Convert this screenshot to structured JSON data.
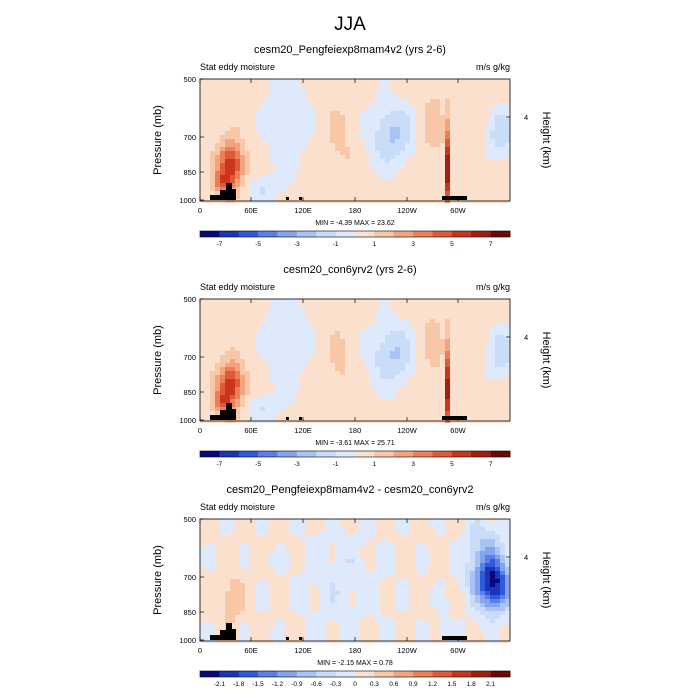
{
  "figure": {
    "title": "JJA",
    "colors": {
      "neg": [
        "#08087a",
        "#1c35b8",
        "#2f59dc",
        "#5a7fe6",
        "#86a4ee",
        "#a9c3f4",
        "#c9dcf8",
        "#deeafb"
      ],
      "pos": [
        "#fbe1cd",
        "#f8c7a8",
        "#f3a47e",
        "#ec7f58",
        "#e05a38",
        "#c83620",
        "#a51c10",
        "#6e0a06"
      ],
      "land": "#000000"
    }
  },
  "chart_data": [
    {
      "type": "heatmap",
      "title": "cesm20_Pengfeiexp8mam4v2 (yrs 2-6)",
      "left_label": "Stat eddy moisture",
      "right_label": "m/s g/kg",
      "ylabel": "Pressure (mb)",
      "right_axis_label": "Height (km)",
      "right_ticks": [
        "4"
      ],
      "y_ticks": [
        "500",
        "700",
        "850",
        "1000"
      ],
      "x_ticks": [
        "0",
        "60E",
        "120E",
        "180",
        "120W",
        "60W"
      ],
      "minmax_text": "MIN = -4.39   MAX = 23.62",
      "min": -4.39,
      "max": 23.62,
      "colorbar_labels": [
        "-7",
        "-5",
        "-3",
        "-1",
        "1",
        "3",
        "5",
        "7"
      ],
      "levels": [
        -8,
        -7,
        -6,
        -5,
        -4,
        -3,
        -2,
        -1,
        0,
        1,
        2,
        3,
        4,
        5,
        6,
        7,
        8
      ]
    },
    {
      "type": "heatmap",
      "title": "cesm20_con6yrv2 (yrs 2-6)",
      "left_label": "Stat eddy moisture",
      "right_label": "m/s g/kg",
      "ylabel": "Pressure (mb)",
      "right_axis_label": "Height (km)",
      "right_ticks": [
        "4"
      ],
      "y_ticks": [
        "500",
        "700",
        "850",
        "1000"
      ],
      "x_ticks": [
        "0",
        "60E",
        "120E",
        "180",
        "120W",
        "60W"
      ],
      "minmax_text": "MIN = -3.61   MAX = 25.71",
      "min": -3.61,
      "max": 25.71,
      "colorbar_labels": [
        "-7",
        "-5",
        "-3",
        "-1",
        "1",
        "3",
        "5",
        "7"
      ],
      "levels": [
        -8,
        -7,
        -6,
        -5,
        -4,
        -3,
        -2,
        -1,
        0,
        1,
        2,
        3,
        4,
        5,
        6,
        7,
        8
      ]
    },
    {
      "type": "heatmap",
      "title": "cesm20_Pengfeiexp8mam4v2 - cesm20_con6yrv2",
      "left_label": "Stat eddy moisture",
      "right_label": "m/s g/kg",
      "ylabel": "Pressure (mb)",
      "right_axis_label": "Height (km)",
      "right_ticks": [
        "4"
      ],
      "y_ticks": [
        "500",
        "700",
        "850",
        "1000"
      ],
      "x_ticks": [
        "0",
        "60E",
        "120E",
        "180",
        "120W",
        "60W"
      ],
      "minmax_text": "MIN = -2.15   MAX =  0.78",
      "min": -2.15,
      "max": 0.78,
      "colorbar_labels": [
        "-2.1",
        "-1.8",
        "-1.5",
        "-1.2",
        "-0.9",
        "-0.6",
        "-0.3",
        "0",
        "0.3",
        "0.6",
        "0.9",
        "1.2",
        "1.5",
        "1.8",
        "2.1"
      ],
      "levels": [
        -2.4,
        -2.1,
        -1.8,
        -1.5,
        -1.2,
        -0.9,
        -0.6,
        -0.3,
        0,
        0.3,
        0.6,
        0.9,
        1.2,
        1.5,
        1.8,
        2.1,
        2.4
      ]
    }
  ]
}
